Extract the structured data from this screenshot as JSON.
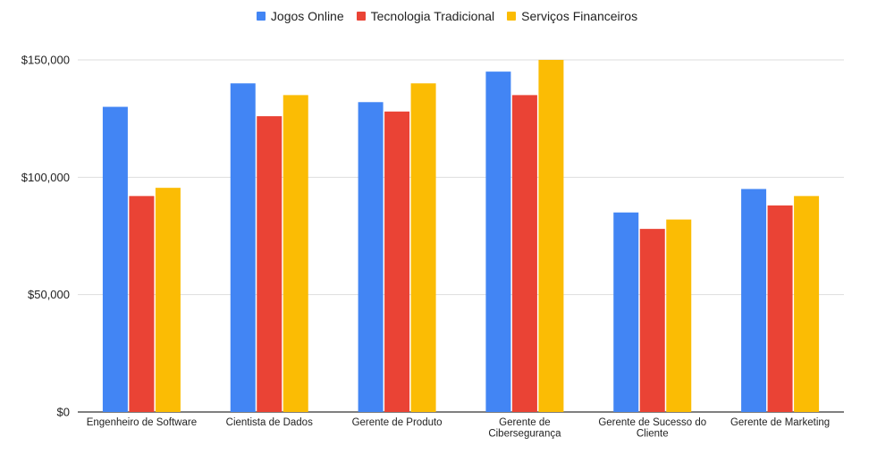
{
  "chart_data": {
    "type": "bar",
    "title": "",
    "xlabel": "",
    "ylabel": "",
    "categories": [
      [
        "Engenheiro de Software"
      ],
      [
        "Cientista de Dados"
      ],
      [
        "Gerente de Produto"
      ],
      [
        "Gerente de",
        "Cibersegurança"
      ],
      [
        "Gerente de Sucesso do",
        "Cliente"
      ],
      [
        "Gerente de Marketing"
      ]
    ],
    "series": [
      {
        "name": "Jogos Online",
        "color": "#4285F4",
        "values": [
          130000,
          140000,
          132000,
          145000,
          85000,
          95000
        ]
      },
      {
        "name": "Tecnologia Tradicional",
        "color": "#EA4335",
        "values": [
          92000,
          126000,
          128000,
          135000,
          78000,
          88000
        ]
      },
      {
        "name": "Serviços Financeiros",
        "color": "#FBBC04",
        "values": [
          95500,
          135000,
          140000,
          150000,
          82000,
          92000
        ]
      }
    ],
    "ylim": [
      0,
      150000
    ],
    "yticks": [
      0,
      50000,
      100000,
      150000
    ],
    "ytick_labels": [
      "$0",
      "$50,000",
      "$100,000",
      "$150,000"
    ],
    "grid": true,
    "legend_position": "top-center"
  }
}
